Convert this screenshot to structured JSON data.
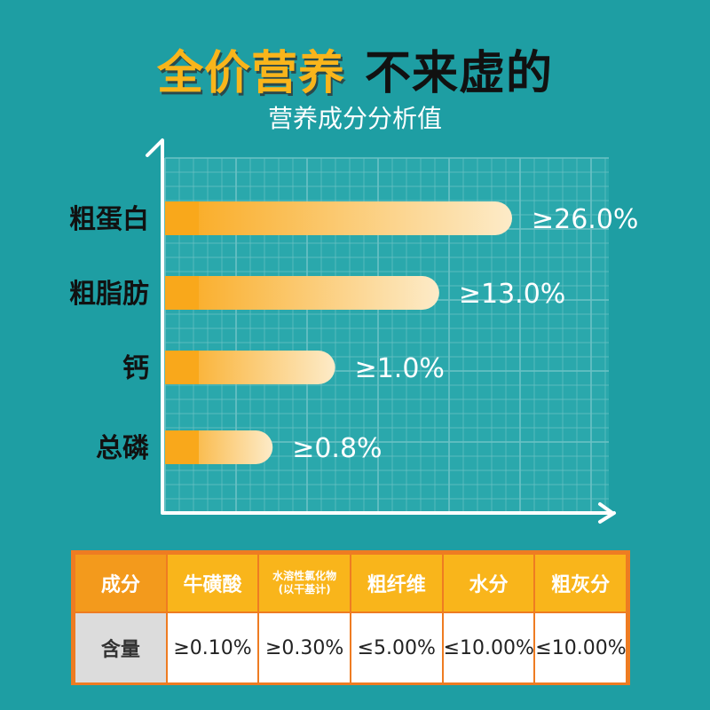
{
  "title": {
    "part1": "全价营养",
    "part2": "不来虚的"
  },
  "subtitle": "营养成分分析值",
  "chart_data": {
    "type": "bar",
    "orientation": "horizontal",
    "title": "",
    "categories": [
      "粗蛋白",
      "粗脂肪",
      "钙",
      "总磷"
    ],
    "values": [
      26.0,
      13.0,
      1.0,
      0.8
    ],
    "value_labels": [
      "≥26.0%",
      "≥13.0%",
      "≥1.0%",
      "≥0.8%"
    ],
    "bar_lengths_relative": [
      1.0,
      0.79,
      0.49,
      0.31
    ],
    "grid": true,
    "colors": {
      "bar_start": "#f9a81b",
      "bar_end": "#fdebc8",
      "grid": "#6cc2c5",
      "panel": "#2aa8ac",
      "axis": "#ffffff"
    }
  },
  "table": {
    "headers": [
      "成分",
      "牛磺酸",
      "水溶性氯化物",
      "(以干基计)",
      "粗纤维",
      "水分",
      "粗灰分"
    ],
    "row_label": "含量",
    "values": [
      "≥0.10%",
      "≥0.30%",
      "≤5.00%",
      "≤10.00%",
      "≤10.00%"
    ],
    "colors": {
      "border": "#ee7c22",
      "header": "#f9b51b",
      "header_first": "#f39a1c",
      "row_label_bg": "#dcdcdc"
    }
  }
}
